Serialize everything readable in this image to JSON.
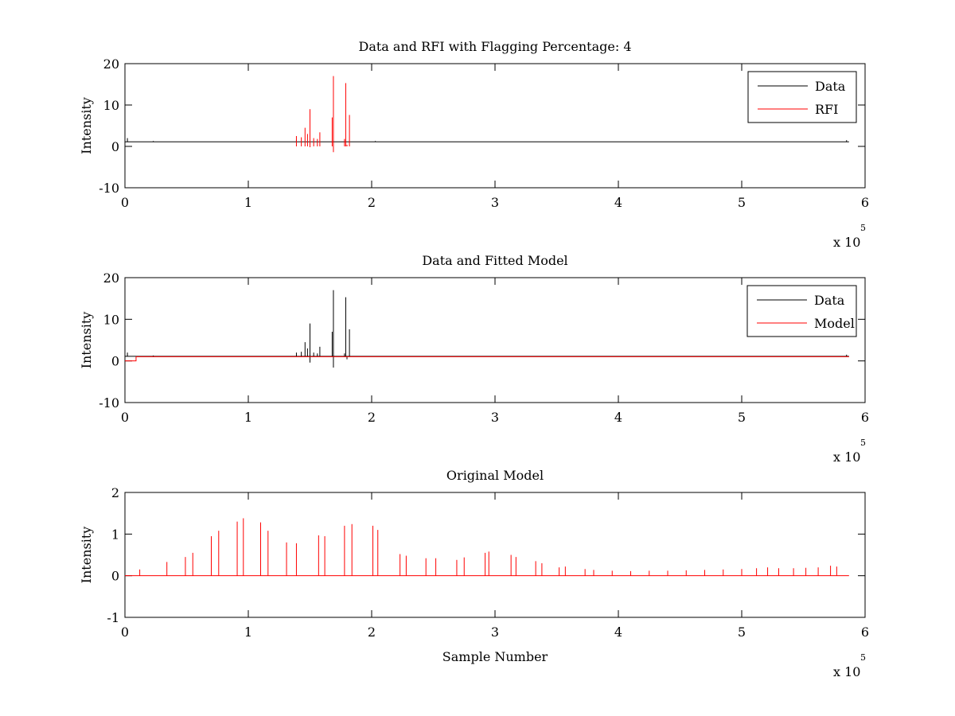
{
  "chart_data": [
    {
      "type": "line",
      "title": "Data and RFI with Flagging Percentage: 4",
      "xlabel": "",
      "ylabel": "Intensity",
      "xlim": [
        0,
        6
      ],
      "ylim": [
        -10,
        20
      ],
      "x_ticks": [
        "0",
        "1",
        "2",
        "3",
        "4",
        "5",
        "6"
      ],
      "y_ticks": [
        "20",
        "10",
        "0",
        "-10"
      ],
      "x_multiplier": "x 10",
      "x_exponent": "5",
      "grid": false,
      "legend_position": "top-right",
      "series": [
        {
          "name": "Data",
          "color": "#000000",
          "baseline": 1.1,
          "spikes": [
            [
              0.02,
              2.0
            ],
            [
              0.23,
              1.3
            ],
            [
              1.39,
              1.6
            ],
            [
              1.69,
              1.3
            ],
            [
              1.79,
              1.4
            ],
            [
              2.03,
              1.3
            ],
            [
              5.85,
              1.5
            ]
          ]
        },
        {
          "name": "RFI",
          "color": "#ff0000",
          "range": [
            1.39,
            1.85
          ],
          "spikes": [
            [
              1.39,
              2.5
            ],
            [
              1.43,
              2.2
            ],
            [
              1.46,
              4.5
            ],
            [
              1.48,
              3.0
            ],
            [
              1.5,
              9.0
            ],
            [
              1.5,
              -0.2
            ],
            [
              1.53,
              2.0
            ],
            [
              1.56,
              1.8
            ],
            [
              1.58,
              3.4
            ],
            [
              1.68,
              7.0
            ],
            [
              1.69,
              17.0
            ],
            [
              1.69,
              -1.4
            ],
            [
              1.78,
              1.8
            ],
            [
              1.79,
              15.3
            ],
            [
              1.8,
              0.4
            ],
            [
              1.82,
              7.6
            ]
          ]
        }
      ]
    },
    {
      "type": "line",
      "title": "Data and Fitted Model",
      "xlabel": "",
      "ylabel": "Intensity",
      "xlim": [
        0,
        6
      ],
      "ylim": [
        -10,
        20
      ],
      "x_ticks": [
        "0",
        "1",
        "2",
        "3",
        "4",
        "5",
        "6"
      ],
      "y_ticks": [
        "20",
        "10",
        "0",
        "-10"
      ],
      "x_multiplier": "x 10",
      "x_exponent": "5",
      "grid": false,
      "legend_position": "top-right",
      "series": [
        {
          "name": "Data",
          "color": "#000000",
          "baseline": 1.1,
          "spikes": [
            [
              0.02,
              2.0
            ],
            [
              0.23,
              1.3
            ],
            [
              1.39,
              2.0
            ],
            [
              1.43,
              2.2
            ],
            [
              1.46,
              4.5
            ],
            [
              1.48,
              3.0
            ],
            [
              1.5,
              9.0
            ],
            [
              1.5,
              -0.4
            ],
            [
              1.53,
              2.0
            ],
            [
              1.56,
              1.8
            ],
            [
              1.58,
              3.4
            ],
            [
              1.68,
              7.0
            ],
            [
              1.69,
              17.0
            ],
            [
              1.69,
              -1.6
            ],
            [
              1.78,
              1.8
            ],
            [
              1.79,
              15.3
            ],
            [
              1.8,
              0.4
            ],
            [
              1.82,
              7.6
            ],
            [
              5.85,
              1.5
            ]
          ]
        },
        {
          "name": "Model",
          "color": "#ff0000",
          "baseline": 1.0,
          "initial": {
            "x_end": 0.09,
            "y": 0.0
          }
        }
      ]
    },
    {
      "type": "line",
      "title": "Original Model",
      "xlabel": "Sample Number",
      "ylabel": "Intensity",
      "xlim": [
        0,
        6
      ],
      "ylim": [
        -1,
        2
      ],
      "x_ticks": [
        "0",
        "1",
        "2",
        "3",
        "4",
        "5",
        "6"
      ],
      "y_ticks": [
        "2",
        "1",
        "0",
        "-1"
      ],
      "x_multiplier": "x 10",
      "x_exponent": "5",
      "grid": false,
      "legend_position": "none",
      "series": [
        {
          "name": "",
          "color": "#ff0000",
          "baseline": 0.0,
          "x_end": 5.87,
          "spikes": [
            [
              0.12,
              0.15
            ],
            [
              0.34,
              0.33
            ],
            [
              0.49,
              0.45
            ],
            [
              0.55,
              0.55
            ],
            [
              0.7,
              0.95
            ],
            [
              0.76,
              1.08
            ],
            [
              0.91,
              1.3
            ],
            [
              0.96,
              1.38
            ],
            [
              1.1,
              1.28
            ],
            [
              1.16,
              1.08
            ],
            [
              1.31,
              0.8
            ],
            [
              1.39,
              0.78
            ],
            [
              1.57,
              0.97
            ],
            [
              1.62,
              0.95
            ],
            [
              1.78,
              1.2
            ],
            [
              1.84,
              1.24
            ],
            [
              2.01,
              1.2
            ],
            [
              2.05,
              1.1
            ],
            [
              2.23,
              0.52
            ],
            [
              2.28,
              0.48
            ],
            [
              2.44,
              0.42
            ],
            [
              2.52,
              0.42
            ],
            [
              2.69,
              0.38
            ],
            [
              2.75,
              0.44
            ],
            [
              2.92,
              0.55
            ],
            [
              2.95,
              0.58
            ],
            [
              3.13,
              0.5
            ],
            [
              3.17,
              0.45
            ],
            [
              3.33,
              0.35
            ],
            [
              3.38,
              0.3
            ],
            [
              3.52,
              0.2
            ],
            [
              3.57,
              0.22
            ],
            [
              3.73,
              0.16
            ],
            [
              3.8,
              0.14
            ],
            [
              3.95,
              0.12
            ],
            [
              4.1,
              0.11
            ],
            [
              4.25,
              0.12
            ],
            [
              4.4,
              0.12
            ],
            [
              4.55,
              0.13
            ],
            [
              4.7,
              0.14
            ],
            [
              4.85,
              0.15
            ],
            [
              5.0,
              0.16
            ],
            [
              5.12,
              0.18
            ],
            [
              5.21,
              0.2
            ],
            [
              5.3,
              0.18
            ],
            [
              5.42,
              0.18
            ],
            [
              5.52,
              0.19
            ],
            [
              5.62,
              0.2
            ],
            [
              5.72,
              0.24
            ],
            [
              5.77,
              0.22
            ]
          ]
        }
      ]
    }
  ]
}
